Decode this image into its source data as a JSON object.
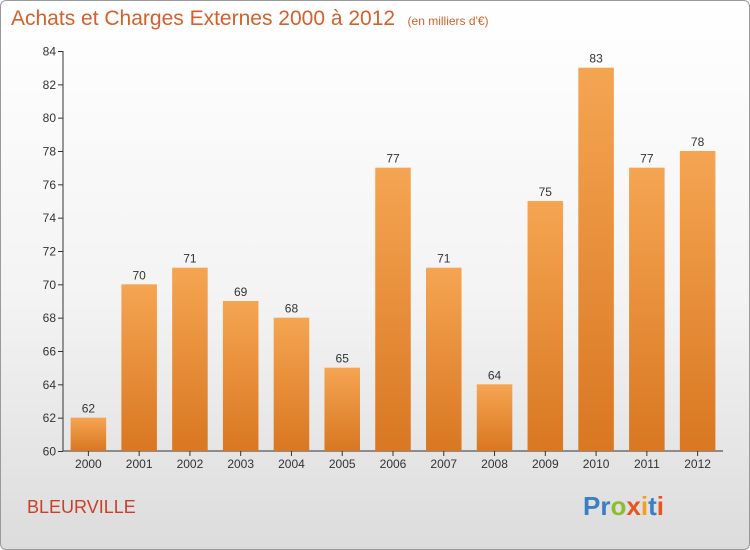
{
  "header": {
    "title": "Achats et Charges Externes 2000 à 2012",
    "subtitle": "(en milliers d'€)"
  },
  "footer": {
    "town": "BLEURVILLE",
    "brand_letters": [
      "P",
      "r",
      "o",
      "x",
      "i",
      "t",
      "i"
    ],
    "brand_colors": [
      "#3a7fc4",
      "#3a7fc4",
      "#8bbf2a",
      "#e8541a",
      "#f0a01a",
      "#3a7fc4",
      "#e8541a"
    ]
  },
  "colors": {
    "bar_light": "#f5a552",
    "bar_dark": "#d97722",
    "axis": "#333333",
    "grid_tick": "#333333",
    "text": "#333333"
  },
  "chart_data": {
    "type": "bar",
    "categories": [
      "2000",
      "2001",
      "2002",
      "2003",
      "2004",
      "2005",
      "2006",
      "2007",
      "2008",
      "2009",
      "2010",
      "2011",
      "2012"
    ],
    "values": [
      62,
      70,
      71,
      69,
      68,
      65,
      77,
      71,
      64,
      75,
      83,
      77,
      78
    ],
    "ylim": [
      60,
      84
    ],
    "yticks": [
      60,
      62,
      64,
      66,
      68,
      70,
      72,
      74,
      76,
      78,
      80,
      82,
      84
    ],
    "title": "Achats et Charges Externes 2000 à 2012",
    "xlabel": "",
    "ylabel": "",
    "grid": false,
    "data_labels": true
  }
}
